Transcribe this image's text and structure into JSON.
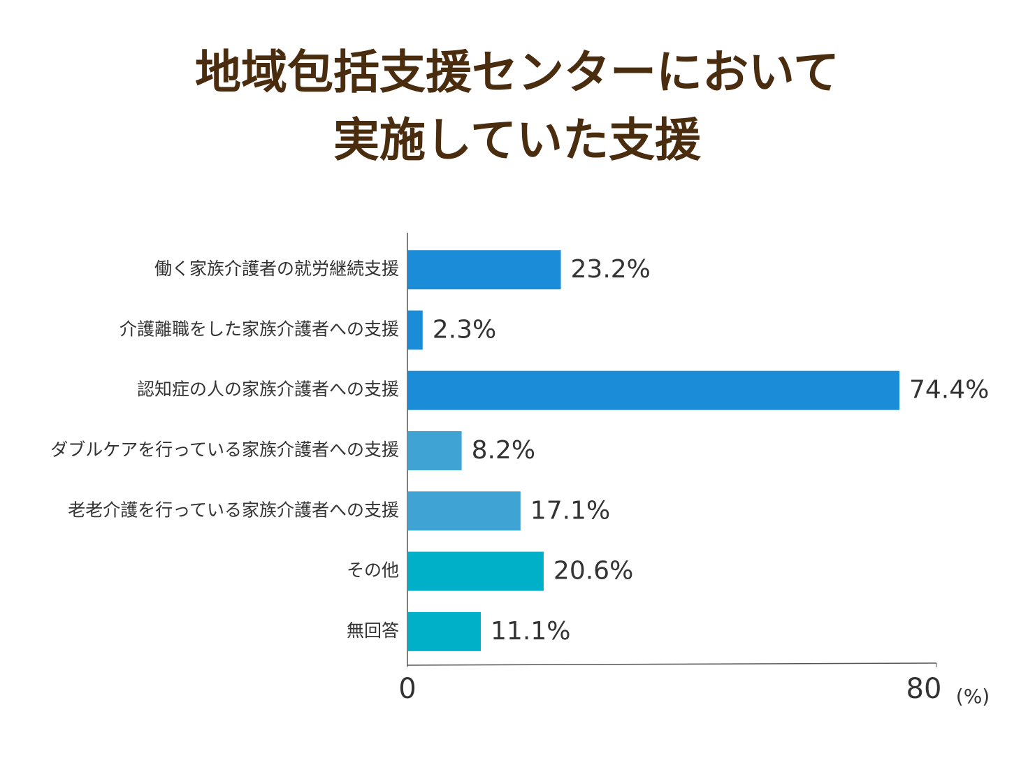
{
  "chart_data": {
    "type": "hbar",
    "title": [
      "地域包括支援センターにおいて",
      "実施していた支援"
    ],
    "categories": [
      "働く家族介護者の就労継続支援",
      "介護離職をした家族介護者への支援",
      "認知症の人の家族介護者への支援",
      "ダブルケアを行っている家族介護者への支援",
      "老老介護を行っている家族介護者への支援",
      "その他",
      "無回答"
    ],
    "values": [
      23.2,
      2.3,
      74.4,
      8.2,
      17.1,
      20.6,
      11.1
    ],
    "value_labels": [
      "23.2%",
      "2.3%",
      "74.4%",
      "8.2%",
      "17.1%",
      "20.6%",
      "11.1%"
    ],
    "colors": [
      "#1a8cd8",
      "#1a8cd8",
      "#1a8cd8",
      "#3fa3d4",
      "#3fa3d4",
      "#00b0c8",
      "#00b0c8"
    ],
    "xlim": [
      0,
      80
    ],
    "xticks": [
      0,
      80
    ],
    "xlabel": "(%)"
  }
}
